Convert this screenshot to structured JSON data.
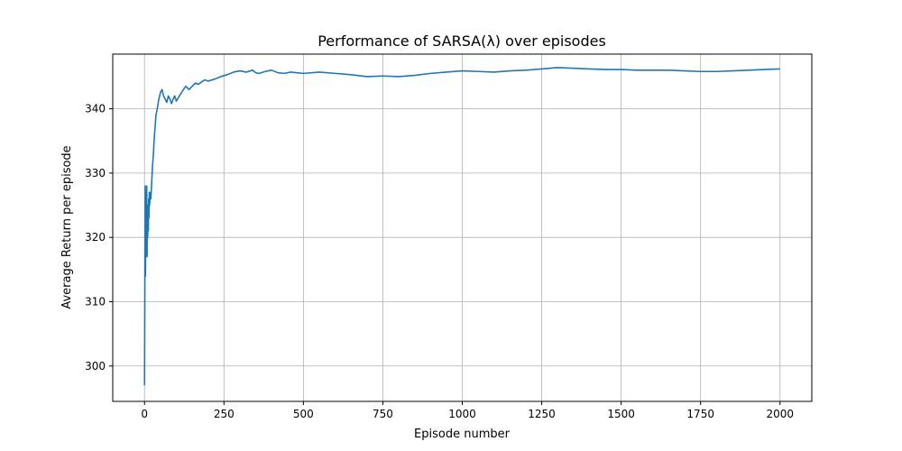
{
  "chart_data": {
    "type": "line",
    "title": "Performance of SARSA(λ) over episodes",
    "xlabel": "Episode number",
    "ylabel": "Average Return per episode",
    "xlim": [
      -100,
      2100
    ],
    "ylim": [
      294.5,
      348.5
    ],
    "xticks": [
      0,
      250,
      500,
      750,
      1000,
      1250,
      1500,
      1750,
      2000
    ],
    "yticks": [
      300,
      310,
      320,
      330,
      340
    ],
    "grid": true,
    "series": [
      {
        "color": "#1f77b4",
        "x": [
          0,
          1,
          2,
          3,
          4,
          5,
          6,
          7,
          8,
          9,
          10,
          11,
          12,
          13,
          14,
          15,
          16,
          18,
          20,
          22,
          25,
          28,
          30,
          33,
          36,
          40,
          45,
          50,
          55,
          60,
          65,
          70,
          75,
          80,
          85,
          90,
          95,
          100,
          110,
          120,
          130,
          140,
          150,
          160,
          170,
          180,
          190,
          200,
          220,
          240,
          260,
          280,
          300,
          320,
          340,
          350,
          360,
          380,
          400,
          420,
          440,
          460,
          480,
          500,
          550,
          600,
          650,
          700,
          750,
          800,
          850,
          900,
          950,
          1000,
          1050,
          1100,
          1150,
          1200,
          1250,
          1300,
          1350,
          1400,
          1450,
          1500,
          1550,
          1600,
          1650,
          1700,
          1750,
          1800,
          1850,
          1900,
          1950,
          2000
        ],
        "y": [
          297,
          311,
          328,
          314,
          322,
          327,
          320,
          328,
          317,
          324,
          320,
          325,
          321,
          326,
          323,
          327,
          325,
          327,
          326,
          328,
          331,
          333,
          335,
          337,
          339,
          340,
          341.5,
          342.5,
          343,
          342,
          341.5,
          341,
          342,
          341.5,
          340.8,
          341.5,
          342,
          341.2,
          342,
          342.8,
          343.5,
          343,
          343.5,
          344,
          343.8,
          344.2,
          344.5,
          344.3,
          344.6,
          345,
          345.3,
          345.7,
          345.9,
          345.7,
          346,
          345.6,
          345.5,
          345.8,
          346,
          345.6,
          345.5,
          345.7,
          345.6,
          345.5,
          345.7,
          345.5,
          345.3,
          345,
          345.1,
          345,
          345.2,
          345.5,
          345.7,
          345.9,
          345.8,
          345.7,
          345.9,
          346,
          346.2,
          346.4,
          346.3,
          346.2,
          346.1,
          346.1,
          346,
          346,
          346,
          345.9,
          345.8,
          345.8,
          345.9,
          346,
          346.1,
          346.2
        ]
      }
    ]
  }
}
